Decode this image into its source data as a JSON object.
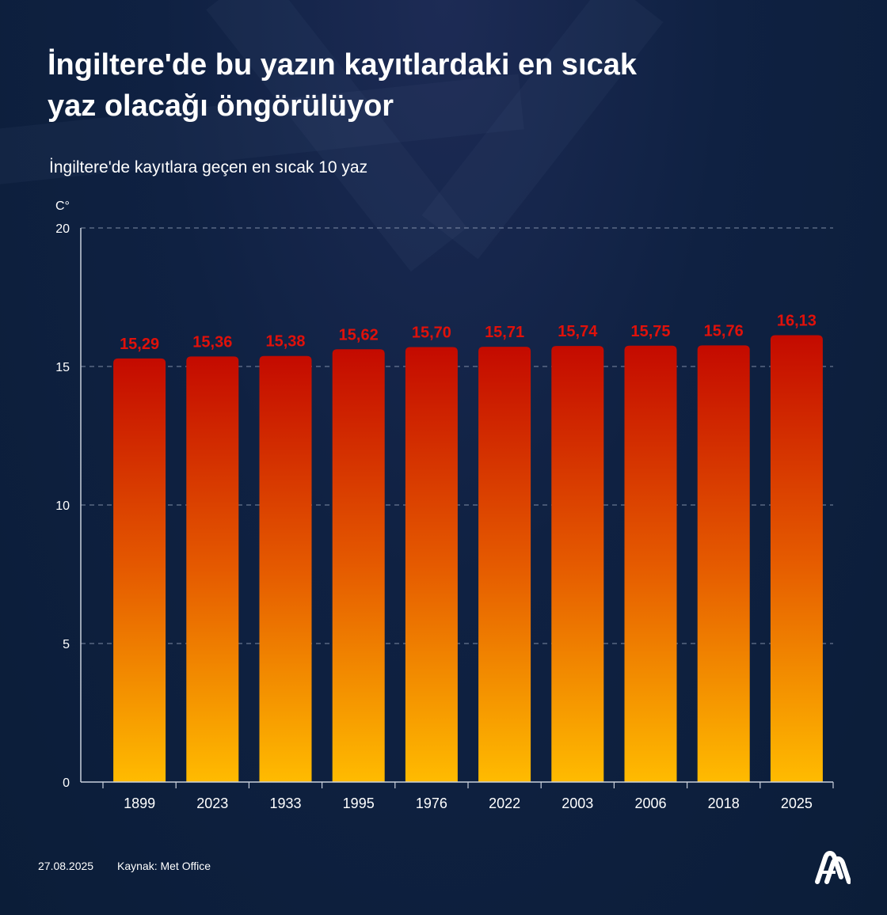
{
  "header": {
    "title_line1": "İngiltere'de bu yazın kayıtlardaki en sıcak",
    "title_line2": "yaz olacağı öngörülüyor",
    "subtitle": "İngiltere'de kayıtlara geçen en sıcak 10 yaz",
    "unit": "C°"
  },
  "chart_data": {
    "type": "bar",
    "title": "İngiltere'de kayıtlara geçen en sıcak 10 yaz",
    "xlabel": "",
    "ylabel": "C°",
    "categories": [
      "1899",
      "2023",
      "1933",
      "1995",
      "1976",
      "2022",
      "2003",
      "2006",
      "2018",
      "2025"
    ],
    "values": [
      15.29,
      15.36,
      15.38,
      15.62,
      15.7,
      15.71,
      15.74,
      15.75,
      15.76,
      16.13
    ],
    "value_labels": [
      "15,29",
      "15,36",
      "15,38",
      "15,62",
      "15,70",
      "15,71",
      "15,74",
      "15,75",
      "15,76",
      "16,13"
    ],
    "ylim": [
      0,
      20
    ],
    "yticks": [
      0,
      5,
      10,
      15,
      20
    ],
    "grid": true,
    "colors": {
      "bar_top": "#c40a00",
      "bar_bottom": "#ffbb00",
      "value_label": "#e0110a",
      "grid": "#9aa6bd",
      "axis": "#c9d0dc"
    }
  },
  "footer": {
    "date": "27.08.2025",
    "source": "Kaynak: Met Office",
    "logo_icon": "aa-logo-icon"
  }
}
